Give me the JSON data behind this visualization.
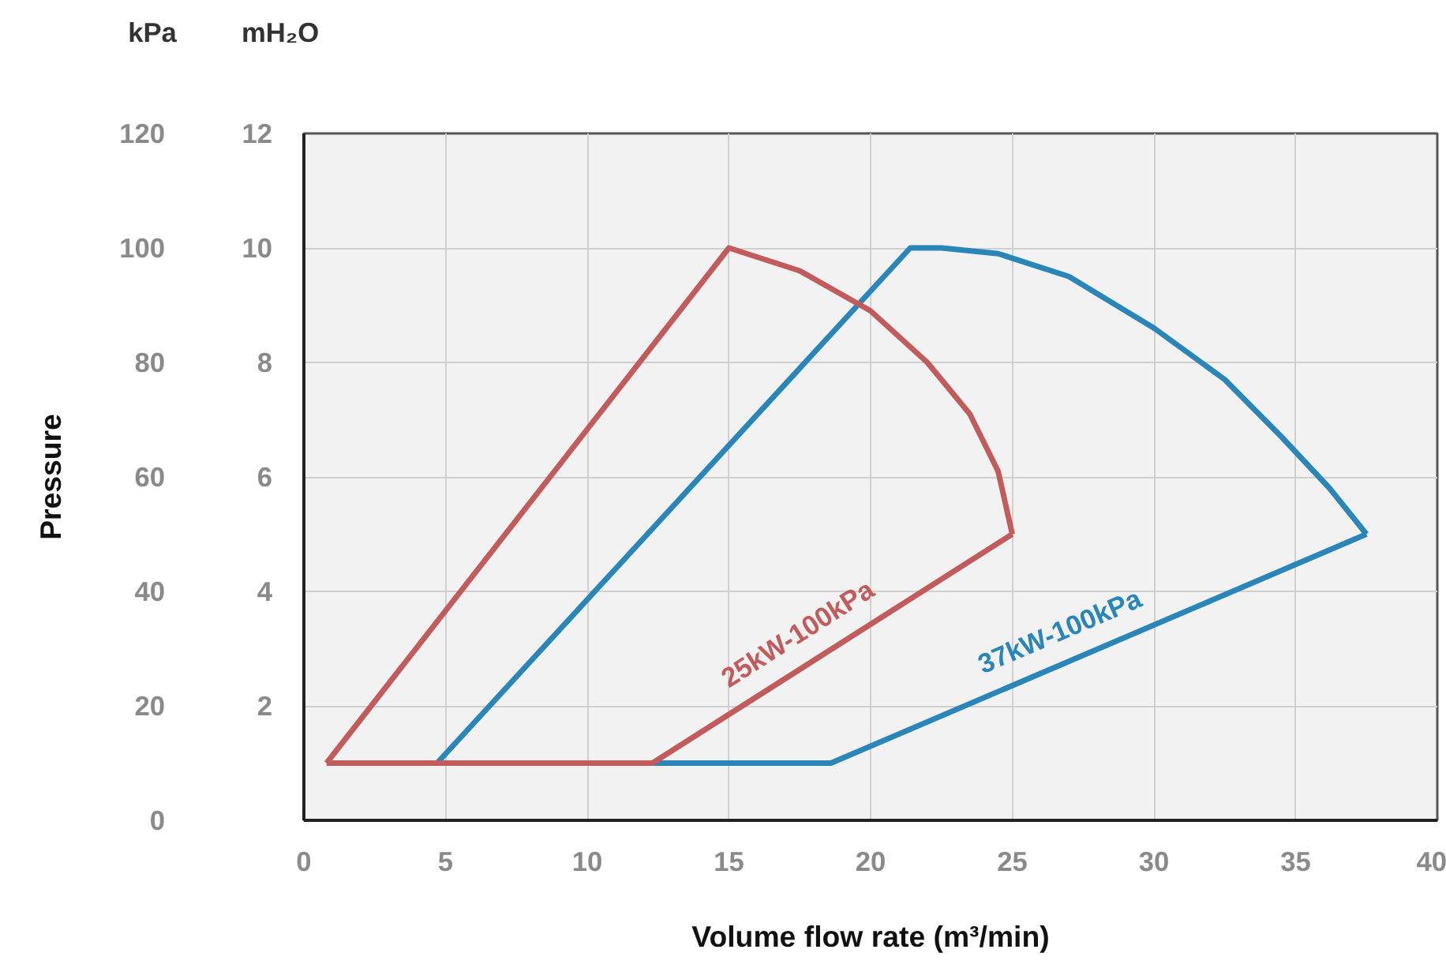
{
  "chart_data": {
    "type": "line",
    "xlabel": "Volume flow rate (m³/min)",
    "ylabel": "Pressure",
    "annotations": [
      "kPa",
      "mH₂O"
    ],
    "xlim": [
      0,
      40
    ],
    "xticks": [
      0,
      5,
      10,
      15,
      20,
      25,
      30,
      35,
      40
    ],
    "ylim": [
      0,
      120
    ],
    "yticks": [
      0,
      20,
      40,
      60,
      80,
      100,
      120
    ],
    "y2lim": [
      0,
      12
    ],
    "y2ticks": [
      2,
      4,
      6,
      8,
      10,
      12
    ],
    "grid": true,
    "legend": false,
    "marker": "none",
    "line_style": "solid",
    "series": [
      {
        "color": "#2a86b8",
        "x": [
          4.7,
          21.4,
          22.5,
          24.5,
          27,
          30,
          32.5,
          34.5,
          36.2,
          37.5
        ],
        "values": [
          10,
          100,
          100,
          99,
          95,
          86,
          77,
          67,
          58,
          50
        ]
      },
      {
        "name": "37kW-100kPa",
        "color": "#2a86b8",
        "x": [
          4.7,
          18.6,
          37.5
        ],
        "values": [
          10,
          10,
          50
        ]
      },
      {
        "color": "#c25b5b",
        "x": [
          0.8,
          15,
          17.5,
          20,
          22,
          23.5,
          24.5,
          25
        ],
        "values": [
          10,
          100,
          96,
          89,
          80,
          71,
          61,
          50
        ]
      },
      {
        "name": "25kW-100kPa",
        "color": "#c25b5b",
        "x": [
          0.8,
          12.3,
          25
        ],
        "values": [
          10,
          10,
          50
        ]
      }
    ]
  }
}
